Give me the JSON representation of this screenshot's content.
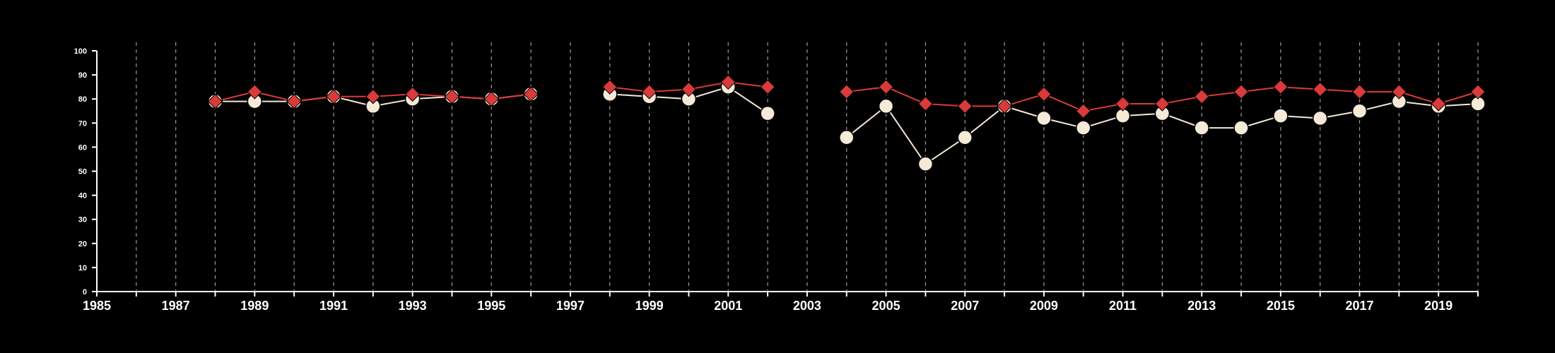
{
  "chart_data": {
    "type": "line",
    "title": "",
    "xlabel": "",
    "ylabel": "",
    "xlim": [
      1985,
      2020
    ],
    "ylim": [
      0,
      100
    ],
    "x_ticks": [
      "1985",
      "1987",
      "1989",
      "1991",
      "1993",
      "1995",
      "1997",
      "1999",
      "2001",
      "2003",
      "2005",
      "2007",
      "2009",
      "2011",
      "2013",
      "2015",
      "2017",
      "2019"
    ],
    "y_ticks": [
      "0",
      "10",
      "20",
      "30",
      "40",
      "50",
      "60",
      "70",
      "80",
      "90",
      "100"
    ],
    "grid": "vertical dashed lines at each year",
    "legend": "none",
    "series": [
      {
        "color": "#f5e9d8",
        "marker": "circle",
        "x": [
          1988,
          1989,
          1990,
          1991,
          1992,
          1993,
          1994,
          1995,
          1996,
          1998,
          1999,
          2000,
          2001,
          2002,
          2004,
          2005,
          2006,
          2007,
          2008,
          2009,
          2010,
          2011,
          2012,
          2013,
          2014,
          2015,
          2016,
          2017,
          2018,
          2019,
          2020
        ],
        "values": [
          79,
          79,
          79,
          81,
          77,
          80,
          81,
          80,
          82,
          82,
          81,
          80,
          85,
          74,
          64,
          77,
          53,
          64,
          77,
          72,
          68,
          73,
          74,
          68,
          68,
          73,
          72,
          75,
          79,
          77,
          78
        ]
      },
      {
        "color": "#d93a3a",
        "marker": "diamond",
        "x": [
          1988,
          1989,
          1990,
          1991,
          1992,
          1993,
          1994,
          1995,
          1996,
          1998,
          1999,
          2000,
          2001,
          2002,
          2004,
          2005,
          2006,
          2007,
          2008,
          2009,
          2010,
          2011,
          2012,
          2013,
          2014,
          2015,
          2016,
          2017,
          2018,
          2019,
          2020
        ],
        "values": [
          79,
          83,
          79,
          81,
          81,
          82,
          81,
          80,
          82,
          85,
          83,
          84,
          87,
          85,
          83,
          85,
          78,
          77,
          77,
          82,
          75,
          78,
          78,
          81,
          83,
          85,
          84,
          83,
          83,
          78,
          83
        ]
      }
    ]
  }
}
